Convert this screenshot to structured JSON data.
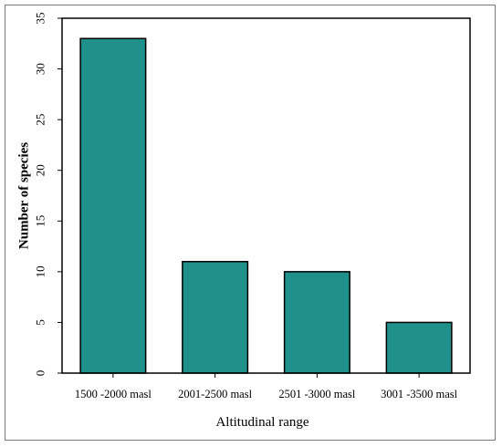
{
  "chart_data": {
    "type": "bar",
    "title": "",
    "xlabel": "Altitudinal range",
    "ylabel": "Number of species",
    "categories": [
      "1500 -2000 masl",
      "2001-2500 masl",
      "2501 -3000 masl",
      "3001 -3500 masl"
    ],
    "values": [
      33,
      11,
      10,
      5
    ],
    "ylim": [
      0,
      35
    ],
    "yticks": [
      0,
      5,
      10,
      15,
      20,
      25,
      30,
      35
    ],
    "grid": false,
    "legend": "none",
    "bar_color": "#20908a"
  }
}
